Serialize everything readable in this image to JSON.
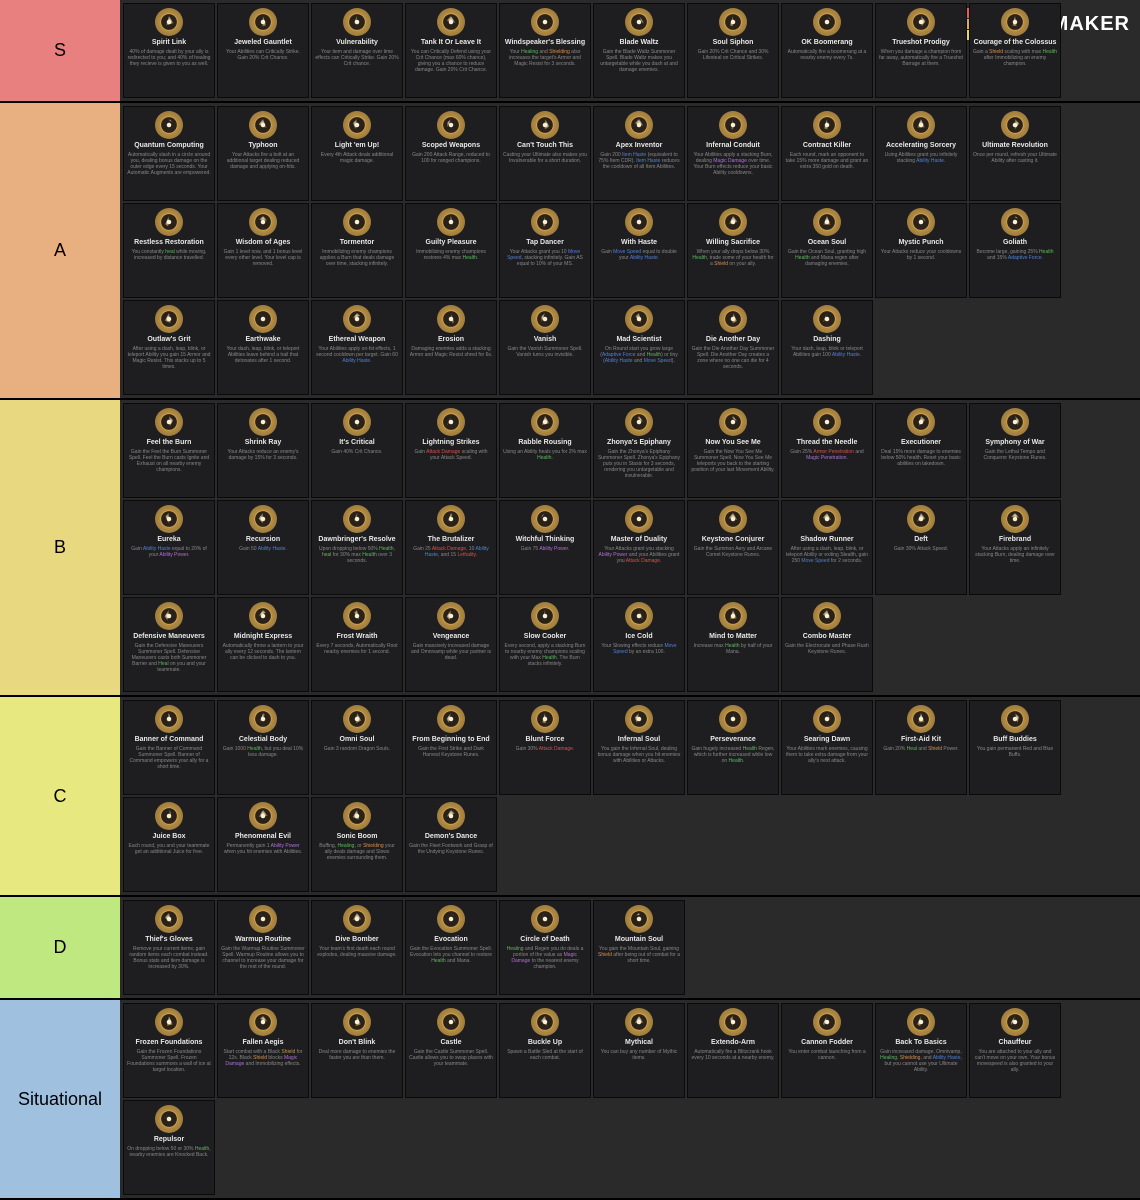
{
  "logo_text": "TIERMAKER",
  "logo_colors": [
    "#e85a5a",
    "#e85a5a",
    "#e85a5a",
    "#e85a5a",
    "#e8a85a",
    "#e8a85a",
    "#e8a85a",
    "#e8a85a",
    "#e8d85a",
    "#e8d85a",
    "#e8d85a",
    "#e8d85a"
  ],
  "tiers": [
    {
      "label": "S",
      "bg": "#e88080",
      "items": [
        {
          "name": "Spirit Link",
          "desc": "40% of damage dealt by your ally is redirected to you; and 40% of healing they recieve is given to you as well.",
          "icon": "link"
        },
        {
          "name": "Jeweled Gauntlet",
          "desc": "Your Abilities can Critically Strike. Gain 20% Crit Chance.",
          "icon": "gauntlet"
        },
        {
          "name": "Vulnerability",
          "desc": "Your item and damage over time effects can Critically Strike. Gain 20% Crit chance.",
          "icon": "vuln"
        },
        {
          "name": "Tank It Or Leave It",
          "desc": "You can Critically Defend using your Crit Chance (max 60% chance), giving you a chance to reduce damage. Gain 20% Crit Chance.",
          "icon": "tank"
        },
        {
          "name": "Windspeaker's Blessing",
          "desc": "Your Healing and Shielding also increases the target's Armor and Magic Resist for 3 seconds.",
          "icon": "wind"
        },
        {
          "name": "Blade Waltz",
          "desc": "Gain the Blade Waltz Summoner Spell. Blade Waltz makes you untargetable while you dash at and damage enemies.",
          "icon": "blade"
        },
        {
          "name": "Soul Siphon",
          "desc": "Gain 20% Crit Chance and 30% Lifesteal on Critical Strikes.",
          "icon": "soul"
        },
        {
          "name": "OK Boomerang",
          "desc": "Automatically fire a boomerang at a nearby enemy every 7s.",
          "icon": "boom"
        },
        {
          "name": "Trueshot Prodigy",
          "desc": "When you damage a champion from far away, automatically fire a Trueshot Barrage at them.",
          "icon": "trueshot"
        },
        {
          "name": "Courage of the Colossus",
          "desc": "Gain a Shield scaling with max Health after Immobilizing an enemy champion.",
          "icon": "colossus"
        }
      ]
    },
    {
      "label": "A",
      "bg": "#e8b080",
      "items": [
        {
          "name": "Quantum Computing",
          "desc": "Automatically slash in a circle around you, dealing bonus damage on the outer edge every 15 seconds. Your Automatic Augments are empowered.",
          "icon": "quantum"
        },
        {
          "name": "Typhoon",
          "desc": "Your Attacks fire a bolt at an additional target dealing reduced damage and applying on-hits.",
          "icon": "typhoon"
        },
        {
          "name": "Light 'em Up!",
          "desc": "Every 4th Attack deals additional magic damage.",
          "icon": "light"
        },
        {
          "name": "Scoped Weapons",
          "desc": "Gain 200 Attack Range, reduced to 100 for ranged champions.",
          "icon": "scope"
        },
        {
          "name": "Can't Touch This",
          "desc": "Casting your Ultimate also makes you Invulnerable for a short duration.",
          "icon": "cant"
        },
        {
          "name": "Apex Inventor",
          "desc": "Gain 200 Item Haste (equivalent to 75% Item CDR). Item Haste reduces the cooldown of all Item Abilities.",
          "icon": "apex"
        },
        {
          "name": "Infernal Conduit",
          "desc": "Your Abilities apply a stacking Burn, dealing Magic Damage over time. Your Burn effects reduce your basic Ability cooldowns.",
          "icon": "infernal"
        },
        {
          "name": "Contract Killer",
          "desc": "Each round, mark an opponent to take 15% more damage and grant an extra 350 gold on death.",
          "icon": "contract"
        },
        {
          "name": "Accelerating Sorcery",
          "desc": "Using Abilities grant you infinitely stacking Ability Haste.",
          "icon": "accel"
        },
        {
          "name": "Ultimate Revolution",
          "desc": "Once per round, refresh your Ultimate Ability after casting it.",
          "icon": "ult"
        },
        {
          "name": "Restless Restoration",
          "desc": "You constantly heal while moving, increased by distance travelled.",
          "icon": "restless"
        },
        {
          "name": "Wisdom of Ages",
          "desc": "Gain 1 level now, and 1 bonus level every other level. Your level cap is removed.",
          "icon": "wisdom"
        },
        {
          "name": "Tormentor",
          "desc": "Immobilizing enemy champions applies a Burn that deals damage over time, stacking infinitely.",
          "icon": "torment"
        },
        {
          "name": "Guilty Pleasure",
          "desc": "Immobilizing enemy champions restores 4% max Health.",
          "icon": "guilty"
        },
        {
          "name": "Tap Dancer",
          "desc": "Your Attacks grant you 10 Move Speed, stacking infinitely. Gain AS equal to 10% of your MS.",
          "icon": "tap"
        },
        {
          "name": "With Haste",
          "desc": "Gain Move Speed equal to double your Ability Haste.",
          "icon": "haste"
        },
        {
          "name": "Willing Sacrifice",
          "desc": "When your ally drops below 30% Health, trade some of your health for a Shield on your ally.",
          "icon": "sacrifice"
        },
        {
          "name": "Ocean Soul",
          "desc": "Gain the Ocean Soul, granting high Health and Mana regen after damaging enemies.",
          "icon": "ocean"
        },
        {
          "name": "Mystic Punch",
          "desc": "Your Attacks reduce your cooldowns by 1 second.",
          "icon": "mystic"
        },
        {
          "name": "Goliath",
          "desc": "Become large, gaining 25% Health and 15% Adaptive Force.",
          "icon": "goliath"
        },
        {
          "name": "Outlaw's Grit",
          "desc": "After using a dash, leap, blink, or teleport Ability you gain 15 Armor and Magic Resist. This stacks up to 5 times.",
          "icon": "outlaw"
        },
        {
          "name": "Earthwake",
          "desc": "Your dash, leap, blink, or teleport Abilities leave behind a trail that detonates after 1 second.",
          "icon": "earth"
        },
        {
          "name": "Ethereal Weapon",
          "desc": "Your Abilities apply on-hit effects, 1 second cooldown per target. Gain 60 Ability Haste.",
          "icon": "ethereal"
        },
        {
          "name": "Erosion",
          "desc": "Damaging enemies adds a stacking Armor and Magic Resist shred for 6s.",
          "icon": "erosion"
        },
        {
          "name": "Vanish",
          "desc": "Gain the Vanish Summoner Spell. Vanish turns you invisible.",
          "icon": "vanish"
        },
        {
          "name": "Mad Scientist",
          "desc": "On Round start you grow large (Adaptive Force and Health) or tiny (Ability Haste and Move Speed).",
          "icon": "mad"
        },
        {
          "name": "Die Another Day",
          "desc": "Gain the Die Another Day Summoner Spell. Die Another Day creates a zone where no one can die for 4 seconds.",
          "icon": "die"
        },
        {
          "name": "Dashing",
          "desc": "Your dash, leap, blink or teleport Abilities gain 100 Ability Haste.",
          "icon": "dash"
        }
      ]
    },
    {
      "label": "B",
      "bg": "#e8d880",
      "items": [
        {
          "name": "Feel the Burn",
          "desc": "Gain the Feel the Burn Summoner Spell. Feel the Burn casts Ignite and Exhaust on all nearby enemy champions.",
          "icon": "burn"
        },
        {
          "name": "Shrink Ray",
          "desc": "Your Attacks reduce an enemy's damage by 15% for 3 seconds.",
          "icon": "shrink"
        },
        {
          "name": "It's Critical",
          "desc": "Gain 40% Crit Chance.",
          "icon": "crit"
        },
        {
          "name": "Lightning Strikes",
          "desc": "Gain Attack Damage scaling with your Attack Speed.",
          "icon": "lightning"
        },
        {
          "name": "Rabble Rousing",
          "desc": "Using an Ability heals you for 2% max Health.",
          "icon": "rabble"
        },
        {
          "name": "Zhonya's Epiphany",
          "desc": "Gain the Zhonya's Epiphany Summoner Spell. Zhonya's Epiphany puts you in Stasis for 3 seconds, rendering you untargetable and invulnerable.",
          "icon": "zhonya"
        },
        {
          "name": "Now You See Me",
          "desc": "Gain the Now You See Me Summoner Spell. Now You See Me teleports you back to the starting position of your last Movement Ability.",
          "icon": "nowsee"
        },
        {
          "name": "Thread the Needle",
          "desc": "Gain 25% Armor Penetration and Magic Penetration.",
          "icon": "thread"
        },
        {
          "name": "Executioner",
          "desc": "Deal 15% more damage to enemies below 50% health. Reset your basic abilities on takedown.",
          "icon": "exec"
        },
        {
          "name": "Symphony of War",
          "desc": "Gain the Lethal Tempo and Conqueror Keystone Runes.",
          "icon": "symphony"
        },
        {
          "name": "Eureka",
          "desc": "Gain Ability Haste equal to 20% of your Ability Power.",
          "icon": "eureka"
        },
        {
          "name": "Recursion",
          "desc": "Gain 50 Ability Haste.",
          "icon": "recursion"
        },
        {
          "name": "Dawnbringer's Resolve",
          "desc": "Upon dropping below 50% Health, heal for 30% max Health over 3 seconds.",
          "icon": "dawn"
        },
        {
          "name": "The Brutalizer",
          "desc": "Gain 25 Attack Damage, 10 Ability Haste, and 15 Lethality.",
          "icon": "brutal"
        },
        {
          "name": "Witchful Thinking",
          "desc": "Gain 75 Ability Power.",
          "icon": "witch"
        },
        {
          "name": "Master of Duality",
          "desc": "Your Attacks grant you stacking Ability Power and your Abilities grant you Attack Damage.",
          "icon": "duality"
        },
        {
          "name": "Keystone Conjurer",
          "desc": "Gain the Summon Aery and Arcane Comet Keystone Runes.",
          "icon": "keystone"
        },
        {
          "name": "Shadow Runner",
          "desc": "After using a dash, leap, blink, or teleport Ability or exiting Stealth, gain 250 Move Speed for 2 seconds.",
          "icon": "shadow"
        },
        {
          "name": "Deft",
          "desc": "Gain 30% Attack Speed.",
          "icon": "deft"
        },
        {
          "name": "Firebrand",
          "desc": "Your Attacks apply an infinitely stacking Burn, dealing damage over time.",
          "icon": "firebrand"
        },
        {
          "name": "Defensive Maneuvers",
          "desc": "Gain the Defensive Maneuvers Summoner Spell. Defensive Maneuvers casts both Summoner Barrier and Heal on you and your teammate.",
          "icon": "defman"
        },
        {
          "name": "Midnight Express",
          "desc": "Automatically throw a lantern to your ally every 12 seconds. The lantern can be clicked to dash to you.",
          "icon": "midnight"
        },
        {
          "name": "Frost Wraith",
          "desc": "Every 7 seconds, Automatically Root nearby enemies for 1 second.",
          "icon": "frost"
        },
        {
          "name": "Vengeance",
          "desc": "Gain massively increased damage and Omnivamp while your partner is dead.",
          "icon": "venge"
        },
        {
          "name": "Slow Cooker",
          "desc": "Every second, apply a stacking Burn to nearby enemy champions scaling with your Max Health. The Burn stacks infinitely.",
          "icon": "slow"
        },
        {
          "name": "Ice Cold",
          "desc": "Your Slowing effects reduce Move Speed by an extra 100.",
          "icon": "ice"
        },
        {
          "name": "Mind to Matter",
          "desc": "Increase max Health by half of your Mana.",
          "icon": "mind"
        },
        {
          "name": "Combo Master",
          "desc": "Gain the Electrocute and Phase Rush Keystone Runes.",
          "icon": "combo"
        }
      ]
    },
    {
      "label": "C",
      "bg": "#e8e880",
      "items": [
        {
          "name": "Banner of Command",
          "desc": "Gain the Banner of Command Summoner Spell. Banner of Command empowers your ally for a short time.",
          "icon": "banner"
        },
        {
          "name": "Celestial Body",
          "desc": "Gain 1000 Health, but you deal 10% less damage.",
          "icon": "celestial"
        },
        {
          "name": "Omni Soul",
          "desc": "Gain 3 random Dragon Souls.",
          "icon": "omni"
        },
        {
          "name": "From Beginning to End",
          "desc": "Gain the First Strike and Dark Harvest Keystone Runes.",
          "icon": "beginning"
        },
        {
          "name": "Blunt Force",
          "desc": "Gain 30% Attack Damage.",
          "icon": "blunt"
        },
        {
          "name": "Infernal Soul",
          "desc": "You gain the Infernal Soul, dealing bonus damage when you hit enemies with Abilities or Attacks.",
          "icon": "infsoul"
        },
        {
          "name": "Perseverance",
          "desc": "Gain hugely increased Health Regen, which is further increased while low on Health.",
          "icon": "persev"
        },
        {
          "name": "Searing Dawn",
          "desc": "Your Abilities mark enemies, causing them to take extra damage from your ally's next attack.",
          "icon": "searing"
        },
        {
          "name": "First-Aid Kit",
          "desc": "Gain 20% Heal and Shield Power.",
          "icon": "firstaid"
        },
        {
          "name": "Buff Buddies",
          "desc": "You gain permanent Red and Blue Buffs.",
          "icon": "buff"
        },
        {
          "name": "Juice Box",
          "desc": "Each round, you and your teammate get an additional Juice for free.",
          "icon": "juice"
        },
        {
          "name": "Phenomenal Evil",
          "desc": "Permanently gain 1 Ability Power when you hit enemies with Abilities.",
          "icon": "phenom"
        },
        {
          "name": "Sonic Boom",
          "desc": "Buffing, Healing, or Shielding your ally deals damage and Slows enemies surrounding them.",
          "icon": "sonic"
        },
        {
          "name": "Demon's Dance",
          "desc": "Gain the Fleet Footwork and Grasp of the Undying Keystone Runes.",
          "icon": "demon"
        }
      ]
    },
    {
      "label": "D",
      "bg": "#c0e880",
      "items": [
        {
          "name": "Thief's Gloves",
          "desc": "Remove your current items; gain random items each combat instead. Bonus stats and item damage is increased by 30%.",
          "icon": "thief"
        },
        {
          "name": "Warmup Routine",
          "desc": "Gain the Warmup Routine Summoner Spell. Warmup Routine allows you to channel to increase your damage for the rest of the round.",
          "icon": "warmup"
        },
        {
          "name": "Dive Bomber",
          "desc": "Your team's first death each round explodes, dealing massive damage.",
          "icon": "dive"
        },
        {
          "name": "Evocation",
          "desc": "Gain the Evocation Summoner Spell. Evocation lets you channel to restore Health and Mana.",
          "icon": "evoc"
        },
        {
          "name": "Circle of Death",
          "desc": "Healing and Regen you do deals a portion of the value as Magic Damage to the nearest enemy champion.",
          "icon": "circle"
        },
        {
          "name": "Mountain Soul",
          "desc": "You gain the Mountain Soul, gaining Shield after being out of combat for a short time.",
          "icon": "mountain"
        }
      ]
    },
    {
      "label": "Situational",
      "bg": "#a0c0e0",
      "items": [
        {
          "name": "Frozen Foundations",
          "desc": "Gain the Frozen Foundations Summoner Spell. Frozen Foundations summons a wall of ice at target location.",
          "icon": "frozen"
        },
        {
          "name": "Fallen Aegis",
          "desc": "Start combat with a Black Shield for 12s. Black Shield blocks Magic Damage and Immobilizing effects.",
          "icon": "fallen"
        },
        {
          "name": "Don't Blink",
          "desc": "Deal more damage to enemies the faster you are than them.",
          "icon": "blink"
        },
        {
          "name": "Castle",
          "desc": "Gain the Castle Summoner Spell. Castle allows you to swap places with your teammate.",
          "icon": "castle"
        },
        {
          "name": "Buckle Up",
          "desc": "Spawn a Battle Sled at the start of each combat.",
          "icon": "buckle"
        },
        {
          "name": "Mythical",
          "desc": "You can buy any number of Mythic items.",
          "icon": "mythical"
        },
        {
          "name": "Extendo-Arm",
          "desc": "Automatically fire a Blitzcrank hook every 10 seconds at a nearby enemy.",
          "icon": "extendo"
        },
        {
          "name": "Cannon Fodder",
          "desc": "You enter combat launching from a cannon.",
          "icon": "cannon"
        },
        {
          "name": "Back To Basics",
          "desc": "Gain increased damage, Omnivamp, Healing, Shielding, and Ability Haste, but you cannot use your Ultimate Ability.",
          "icon": "basics"
        },
        {
          "name": "Chauffeur",
          "desc": "You are attached to your ally and can't move on your own. Your bonus movespeed is also granted to your ally.",
          "icon": "chauffeur"
        },
        {
          "name": "Repulsor",
          "desc": "On dropping below 50 or 30% Health, nearby enemies are Knocked Back.",
          "icon": "repulsor"
        }
      ]
    }
  ]
}
